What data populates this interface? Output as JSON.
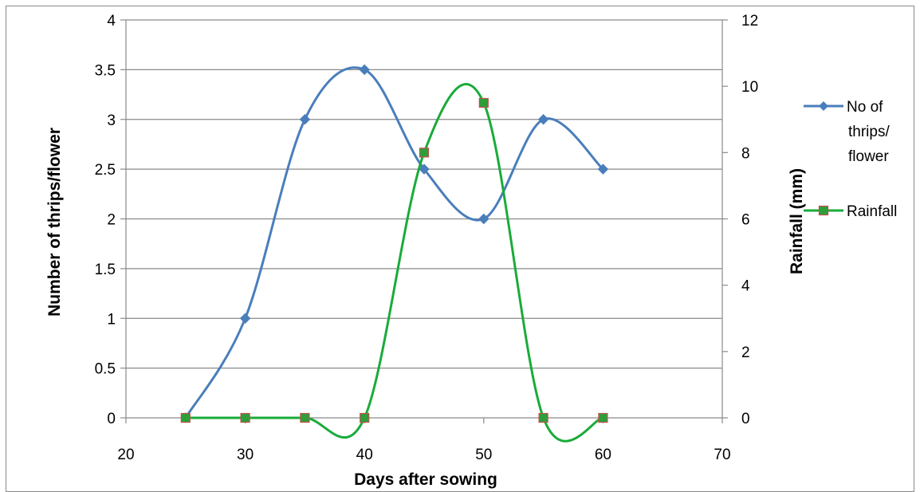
{
  "chart_data": {
    "type": "line",
    "xlabel": "Days after sowing",
    "ylabel_left": "Number of thrips/flower",
    "ylabel_right": "Rainfall (mm)",
    "xlim": [
      20,
      70
    ],
    "xticks": [
      20,
      30,
      40,
      50,
      60,
      70
    ],
    "ylim_left": [
      0,
      4
    ],
    "yticks_left": [
      0,
      0.5,
      1,
      1.5,
      2,
      2.5,
      3,
      3.5,
      4
    ],
    "ylim_right": [
      0,
      12
    ],
    "yticks_right": [
      0,
      2,
      4,
      6,
      8,
      10,
      12
    ],
    "grid": "horizontal",
    "legend_position": "right",
    "series": [
      {
        "name": "No of thrips/ flower",
        "legend_lines": [
          "No of",
          "thrips/",
          "flower"
        ],
        "axis": "left",
        "marker": "diamond",
        "color": "#4a7ebb",
        "smooth": true,
        "x": [
          25,
          30,
          35,
          40,
          45,
          50,
          55,
          60
        ],
        "values": [
          0,
          1,
          3,
          3.5,
          2.5,
          2,
          3,
          2.5
        ]
      },
      {
        "name": "Rainfall",
        "legend_lines": [
          "Rainfall"
        ],
        "axis": "right",
        "marker": "square",
        "color": "#1aab3a",
        "marker_fill": "#2e9e3a",
        "marker_edge": "#c0504d",
        "smooth": true,
        "x": [
          25,
          30,
          35,
          40,
          45,
          50,
          55,
          60
        ],
        "values": [
          0,
          0,
          0,
          0,
          8,
          9.5,
          0,
          0
        ]
      }
    ]
  }
}
